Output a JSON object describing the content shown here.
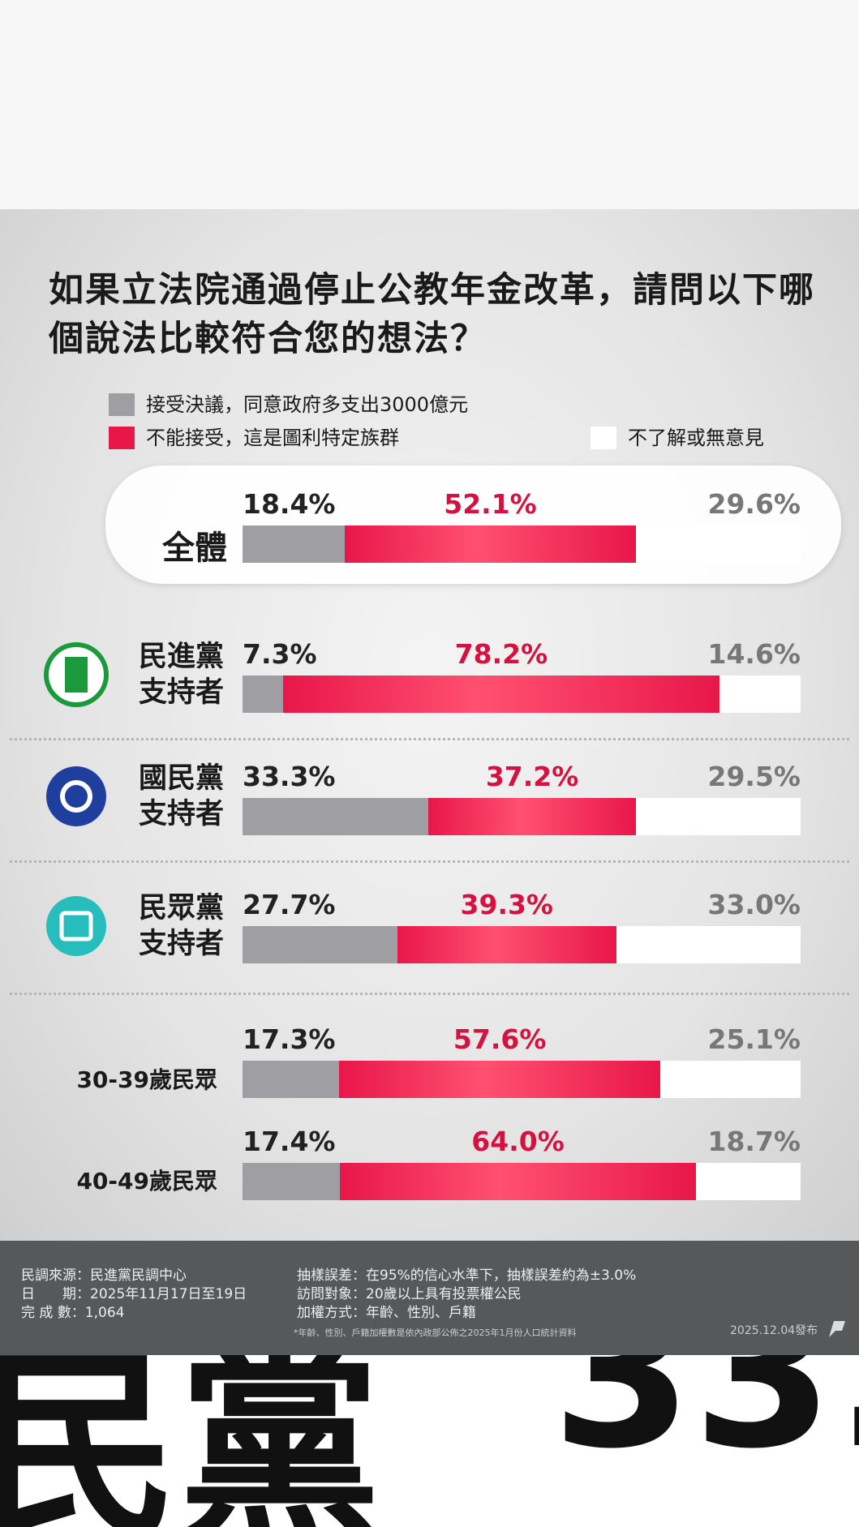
{
  "chart_data": {
    "type": "stacked_bar",
    "title": "如果立法院通過停止公教年金改革，請問以下哪個說法比較符合您的想法？",
    "categories": [
      "全體",
      "民進黨支持者",
      "國民黨支持者",
      "民眾黨支持者",
      "30-39歲民眾",
      "40-49歲民眾"
    ],
    "series": [
      {
        "name": "接受決議，同意政府多支出3000億元",
        "color": "#9e9ea3",
        "values": [
          18.4,
          7.3,
          33.3,
          27.7,
          17.3,
          17.4
        ],
        "value_labels": [
          "18.4%",
          "7.3%",
          "33.3%",
          "27.7%",
          "17.3%",
          "17.4%"
        ]
      },
      {
        "name": "不能接受，這是圖利特定族群",
        "color": "#e8174a",
        "values": [
          52.1,
          78.2,
          37.2,
          39.3,
          57.6,
          64.0
        ],
        "value_labels": [
          "52.1%",
          "78.2%",
          "37.2%",
          "39.3%",
          "57.6%",
          "64.0%"
        ]
      },
      {
        "name": "不了解或無意見",
        "color": "#ffffff",
        "values": [
          29.6,
          14.6,
          29.5,
          33.0,
          25.1,
          18.7
        ],
        "value_labels": [
          "29.6%",
          "14.6%",
          "29.5%",
          "33.0%",
          "25.1%",
          "18.7%"
        ]
      }
    ]
  },
  "footer": {
    "left": [
      "民調來源：民進黨民調中心",
      "日　　期：2025年11月17日至19日",
      "完 成 數：1,064"
    ],
    "right": [
      "抽樣誤差：在95%的信心水準下，抽樣誤差約為±3.0%",
      "訪問對象：20歲以上具有投票權公民",
      "加權方式：年齡、性別、戶籍"
    ],
    "note": "*年齡、性別、戶籍加權數是依內政部公佈之2025年1月份人口統計資料",
    "date": "2025.12.04發布"
  },
  "zoom": {
    "left": "民黨",
    "right": "33."
  }
}
